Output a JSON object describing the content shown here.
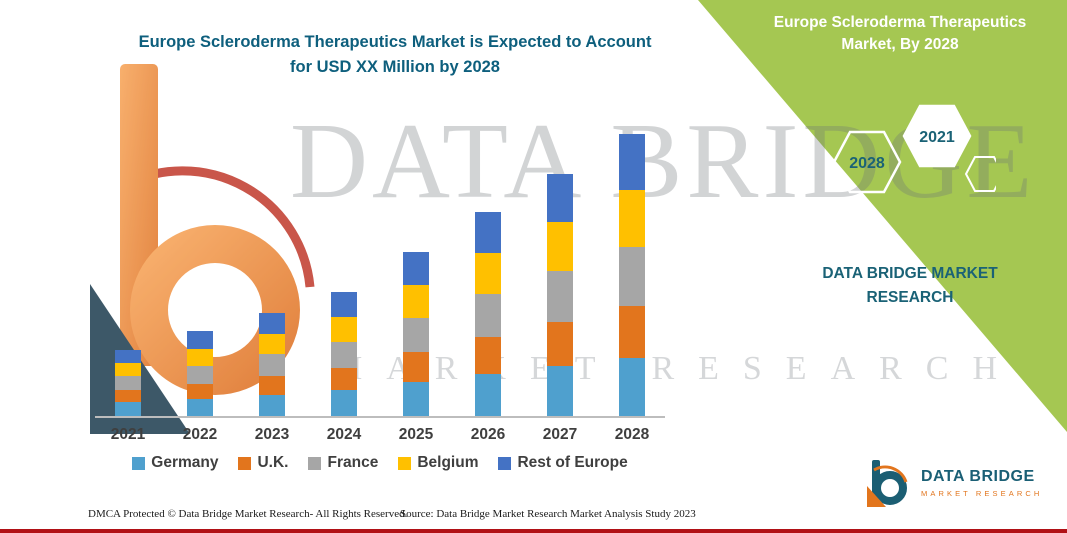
{
  "title": {
    "line1": "Europe Scleroderma Therapeutics Market is Expected to Account",
    "line2": "for USD XX Million by 2028"
  },
  "side_panel": {
    "bg_color": "#a5c752",
    "title_line1": "Europe Scleroderma Therapeutics",
    "title_line2": "Market, By 2028",
    "hexagon_left": "2028",
    "hexagon_right": "2021",
    "brand_line1": "DATA BRIDGE MARKET",
    "brand_line2": "RESEARCH"
  },
  "watermark": {
    "big": "DATA BRIDGE",
    "small": "MARKET RESEARCH"
  },
  "chart_data": {
    "type": "bar",
    "stacked": true,
    "title": "Europe Scleroderma Therapeutics Market is Expected to Account for USD XX Million by 2028",
    "xlabel": "",
    "ylabel": "",
    "y_axis_shown": false,
    "grid": false,
    "legend_position": "bottom",
    "units": "relative (values shown as USD XX Million, not labeled on chart)",
    "ylim": [
      0,
      290
    ],
    "categories": [
      "2021",
      "2022",
      "2023",
      "2024",
      "2025",
      "2026",
      "2027",
      "2028"
    ],
    "series": [
      {
        "name": "Germany",
        "color": "#4fa0ce",
        "values": [
          14,
          17,
          21,
          26,
          34,
          42,
          50,
          58
        ]
      },
      {
        "name": "U.K.",
        "color": "#e2751d",
        "values": [
          12,
          15,
          19,
          22,
          30,
          37,
          44,
          52
        ]
      },
      {
        "name": "France",
        "color": "#a6a6a6",
        "values": [
          14,
          18,
          22,
          26,
          34,
          43,
          51,
          59
        ]
      },
      {
        "name": "Belgium",
        "color": "#ffc000",
        "values": [
          13,
          17,
          20,
          25,
          33,
          41,
          49,
          57
        ]
      },
      {
        "name": "Rest of Europe",
        "color": "#4472c4",
        "values": [
          13,
          18,
          21,
          25,
          33,
          41,
          48,
          56
        ]
      }
    ]
  },
  "logo": {
    "name": "DATA BRIDGE",
    "sub": "MARKET RESEARCH"
  },
  "footer": {
    "left": "DMCA Protected © Data Bridge Market Research-  All Rights Reserved.",
    "source": "Source: Data Bridge Market Research  Market Analysis Study 2023"
  }
}
